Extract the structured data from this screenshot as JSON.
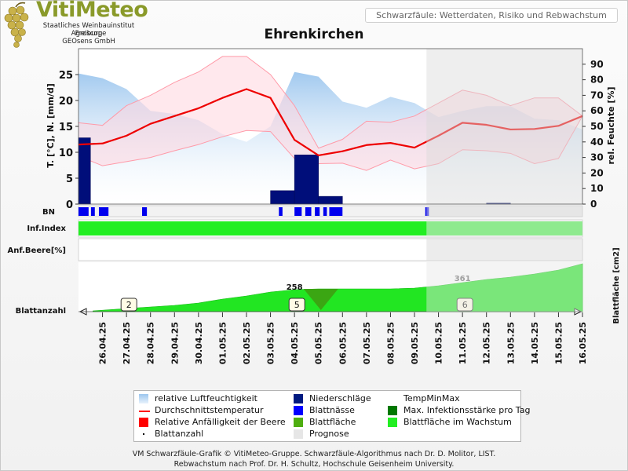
{
  "logo": {
    "title": "VitiMeteo",
    "lines": [
      "Staatliches Weinbauinstitut Freiburg",
      "Agroscope",
      "GEOsens GmbH"
    ]
  },
  "header": {
    "subtitle": "Schwarzfäule: Wetterdaten, Risiko und Rebwachstum"
  },
  "chart_data": {
    "type": "line",
    "title": "Ehrenkirchen",
    "x": [
      "26.04.25",
      "27.04.25",
      "28.04.25",
      "29.04.25",
      "30.04.25",
      "01.05.25",
      "02.05.25",
      "03.05.25",
      "04.05.25",
      "05.05.25",
      "06.05.25",
      "07.05.25",
      "08.05.25",
      "09.05.25",
      "10.05.25",
      "11.05.25",
      "12.05.25",
      "13.05.25",
      "14.05.25",
      "15.05.25",
      "16.05.25"
    ],
    "x_start": "25.04.25",
    "forecast_start": "09.05.25 12:00",
    "y_left": {
      "label": "T. [°C], N. [mm/d]",
      "range": [
        0,
        30
      ],
      "ticks": [
        0,
        5,
        10,
        15,
        20,
        25
      ]
    },
    "y_right": {
      "label": "rel. Feuchte [%]",
      "range": [
        0,
        100
      ],
      "ticks": [
        0,
        10,
        20,
        30,
        40,
        50,
        60,
        70,
        80,
        90
      ]
    },
    "y_leaf_area": {
      "label": "Blattfläche [cm2]"
    },
    "temperature_avg": [
      11.5,
      11.7,
      13.2,
      15.5,
      17.0,
      18.5,
      20.5,
      22.2,
      20.5,
      12.4,
      9.4,
      10.2,
      11.4,
      11.8,
      10.9,
      13.2,
      15.7,
      15.3,
      14.4,
      14.5,
      15.1,
      17.0
    ],
    "temperature_max": [
      15.7,
      15.2,
      19.0,
      21.0,
      23.5,
      25.5,
      28.5,
      28.5,
      25.0,
      19.0,
      10.8,
      12.5,
      16.0,
      15.8,
      17.0,
      19.5,
      22.0,
      21.0,
      19.0,
      20.5,
      20.5,
      17.0
    ],
    "temperature_min": [
      9.3,
      7.4,
      8.2,
      9.0,
      10.3,
      11.5,
      13.0,
      14.2,
      14.0,
      8.8,
      7.8,
      7.9,
      6.5,
      8.5,
      6.8,
      7.8,
      10.5,
      10.3,
      9.8,
      7.8,
      8.8,
      17.0
    ],
    "humidity": [
      84,
      81,
      74,
      60,
      58,
      54,
      45,
      40,
      50,
      85,
      82,
      66,
      62,
      69,
      65,
      56,
      60,
      63,
      63,
      55,
      54,
      48
    ],
    "precipitation": [
      {
        "from": "25.04.25",
        "to": "25.04.25 12:00",
        "value": 12.8
      },
      {
        "from": "03.05.25",
        "to": "04.05.25",
        "value": 2.6
      },
      {
        "from": "04.05.25",
        "to": "05.05.25",
        "value": 9.5
      },
      {
        "from": "05.05.25",
        "to": "06.05.25",
        "value": 1.5
      },
      {
        "from": "12.05.25",
        "to": "13.05.25",
        "value": 0.2
      }
    ],
    "leaf_wetness_rows": [
      "BN"
    ],
    "infection_index": {
      "label": "Inf.Index",
      "level": "none"
    },
    "berry_susceptibility": {
      "label": "Anf.Beere[%]"
    },
    "leaf_area_annotations": [
      {
        "date": "04.05.25",
        "value": 258
      },
      {
        "date": "11.05.25",
        "value": 361
      }
    ],
    "leaf_count_label": "Blattanzahl",
    "leaf_counts": [
      {
        "date": "27.04.25",
        "value": "2"
      },
      {
        "date": "04.05.25",
        "value": "5"
      },
      {
        "date": "11.05.25",
        "value": "6"
      }
    ]
  },
  "legend": [
    {
      "label": "relative Luftfeuchtigkeit",
      "color": "#b3d3f3",
      "icon": "gradient-swatch"
    },
    {
      "label": "Durchschnittstemperatur",
      "color": "#ff0000",
      "icon": "line"
    },
    {
      "label": "Relative Anfälligkeit der Beere",
      "color": "#ff0000",
      "icon": "square"
    },
    {
      "label": "Blattanzahl",
      "color": "#000000",
      "icon": "dot"
    },
    {
      "label": "Niederschläge",
      "color": "#001a80",
      "icon": "square"
    },
    {
      "label": "Blattnässe",
      "color": "#0000ff",
      "icon": "square"
    },
    {
      "label": "Blattfläche",
      "color": "#4fae10",
      "icon": "square"
    },
    {
      "label": "Prognose",
      "color": "#e6e6e6",
      "icon": "square"
    },
    {
      "label": "TempMinMax",
      "color": "#ffe0e6",
      "icon": "none"
    },
    {
      "label": "Max. Infektionsstärke pro Tag",
      "color": "#007800",
      "icon": "square"
    },
    {
      "label": "Blattfläche im Wachstum",
      "color": "#22ee22",
      "icon": "square"
    }
  ],
  "footer": {
    "line1": "VM Schwarzfäule-Grafik © VitiMeteo-Gruppe. Schwarzfäule-Algorithmus nach Dr. D. Molitor, LIST.",
    "line2": "Rebwachstum nach Prof. Dr. H. Schultz, Hochschule Geisenheim University."
  }
}
